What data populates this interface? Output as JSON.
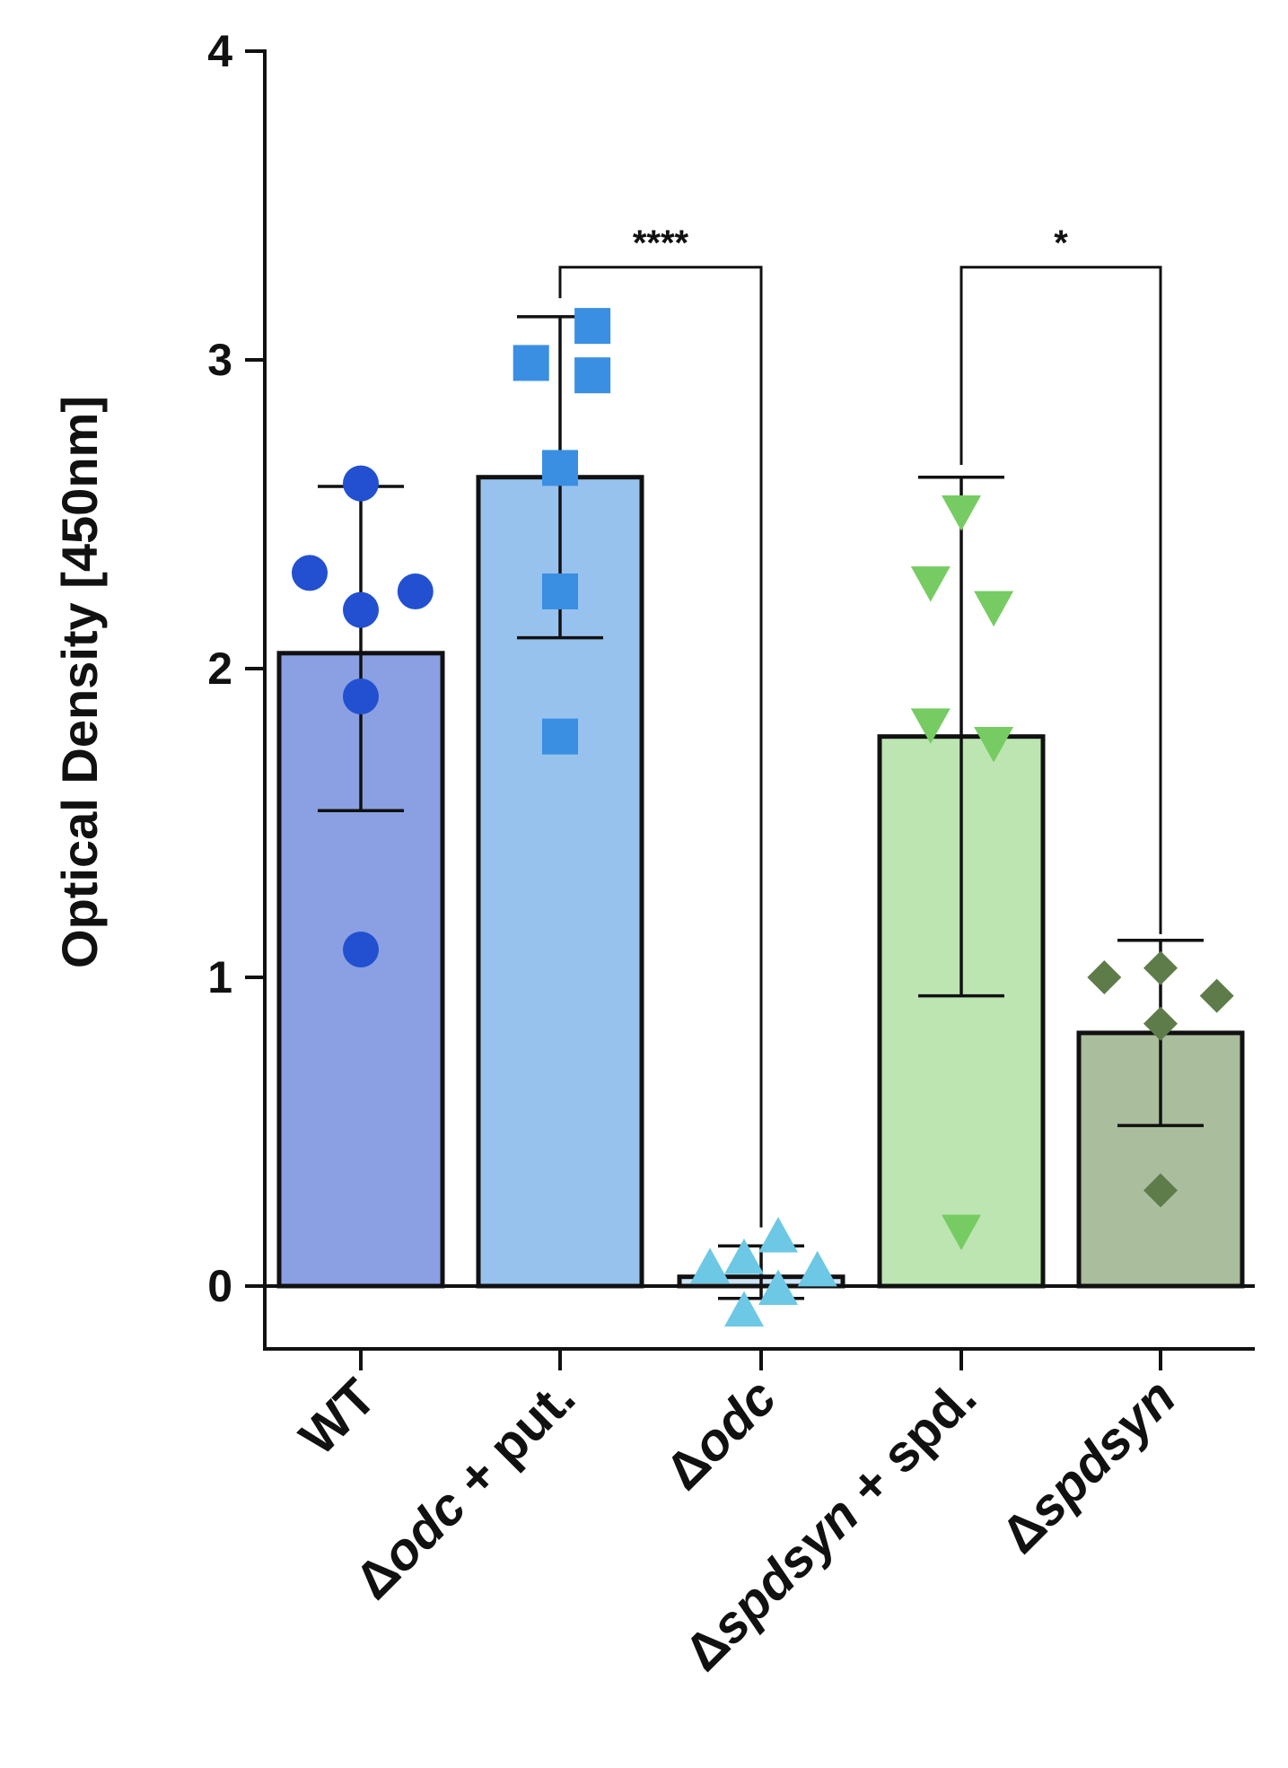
{
  "chart_data": {
    "type": "bar",
    "ylabel": "Optical Density [450nm]",
    "xlabel": "",
    "ylim": [
      -0.2,
      4
    ],
    "yticks": [
      "0",
      "1",
      "2",
      "3",
      "4"
    ],
    "categories": [
      {
        "id": "wt",
        "parts": [
          {
            "text": "WT",
            "italic": false
          }
        ],
        "color": "#8aa0e2",
        "point_color": "#2250d0",
        "marker": "circle"
      },
      {
        "id": "odc-put",
        "parts": [
          {
            "text": "Δ",
            "italic": false
          },
          {
            "text": "odc",
            "italic": true
          },
          {
            "text": " + put.",
            "italic": false
          }
        ],
        "color": "#98c2ee",
        "point_color": "#3a8fe2",
        "marker": "square"
      },
      {
        "id": "odc",
        "parts": [
          {
            "text": "Δ",
            "italic": false
          },
          {
            "text": "odc",
            "italic": true
          }
        ],
        "color": "#cce5f6",
        "point_color": "#6cc8e4",
        "marker": "triangle-up"
      },
      {
        "id": "spdsyn-spd",
        "parts": [
          {
            "text": "Δ",
            "italic": false
          },
          {
            "text": "spdsyn",
            "italic": true
          },
          {
            "text": " + spd.",
            "italic": false
          }
        ],
        "color": "#bde5b2",
        "point_color": "#76cc62",
        "marker": "triangle-down"
      },
      {
        "id": "spdsyn",
        "parts": [
          {
            "text": "Δ",
            "italic": false
          },
          {
            "text": "spdsyn",
            "italic": true
          }
        ],
        "color": "#aabd9c",
        "point_color": "#5e7c4a",
        "marker": "diamond"
      }
    ],
    "values": [
      2.05,
      2.62,
      0.03,
      1.78,
      0.82
    ],
    "error": [
      {
        "low": 1.54,
        "high": 2.59
      },
      {
        "low": 2.1,
        "high": 3.14
      },
      {
        "low": -0.04,
        "high": 0.13
      },
      {
        "low": 0.94,
        "high": 2.62
      },
      {
        "low": 0.52,
        "high": 1.12
      }
    ],
    "points": [
      [
        {
          "offset": -0.3,
          "y": 2.31
        },
        {
          "offset": 0.0,
          "y": 2.6
        },
        {
          "offset": 0.32,
          "y": 2.25
        },
        {
          "offset": 0.0,
          "y": 2.19
        },
        {
          "offset": 0.0,
          "y": 1.91
        },
        {
          "offset": 0.0,
          "y": 1.09
        }
      ],
      [
        {
          "offset": -0.17,
          "y": 2.99
        },
        {
          "offset": 0.19,
          "y": 3.11
        },
        {
          "offset": 0.19,
          "y": 2.95
        },
        {
          "offset": 0.0,
          "y": 2.65
        },
        {
          "offset": 0.0,
          "y": 2.25
        },
        {
          "offset": 0.0,
          "y": 1.78
        }
      ],
      [
        {
          "offset": -0.3,
          "y": 0.06
        },
        {
          "offset": -0.1,
          "y": 0.09
        },
        {
          "offset": 0.1,
          "y": 0.16
        },
        {
          "offset": 0.1,
          "y": -0.01
        },
        {
          "offset": 0.33,
          "y": 0.05
        },
        {
          "offset": -0.1,
          "y": -0.08
        }
      ],
      [
        {
          "offset": -0.18,
          "y": 2.28
        },
        {
          "offset": 0.0,
          "y": 2.51
        },
        {
          "offset": 0.19,
          "y": 2.2
        },
        {
          "offset": -0.18,
          "y": 1.82
        },
        {
          "offset": 0.19,
          "y": 1.76
        },
        {
          "offset": 0.0,
          "y": 0.18
        }
      ],
      [
        {
          "offset": -0.33,
          "y": 1.0
        },
        {
          "offset": 0.0,
          "y": 1.03
        },
        {
          "offset": 0.33,
          "y": 0.94
        },
        {
          "offset": 0.0,
          "y": 0.85
        },
        {
          "offset": 0.0,
          "y": 0.31
        }
      ]
    ],
    "significance": [
      {
        "from": 1,
        "to": 2,
        "label": "****",
        "y": 3.3,
        "left_end": 3.2,
        "right_end": 0.19
      },
      {
        "from": 3,
        "to": 4,
        "label": "*",
        "y": 3.3,
        "left_end": 2.66,
        "right_end": 1.14
      }
    ]
  }
}
